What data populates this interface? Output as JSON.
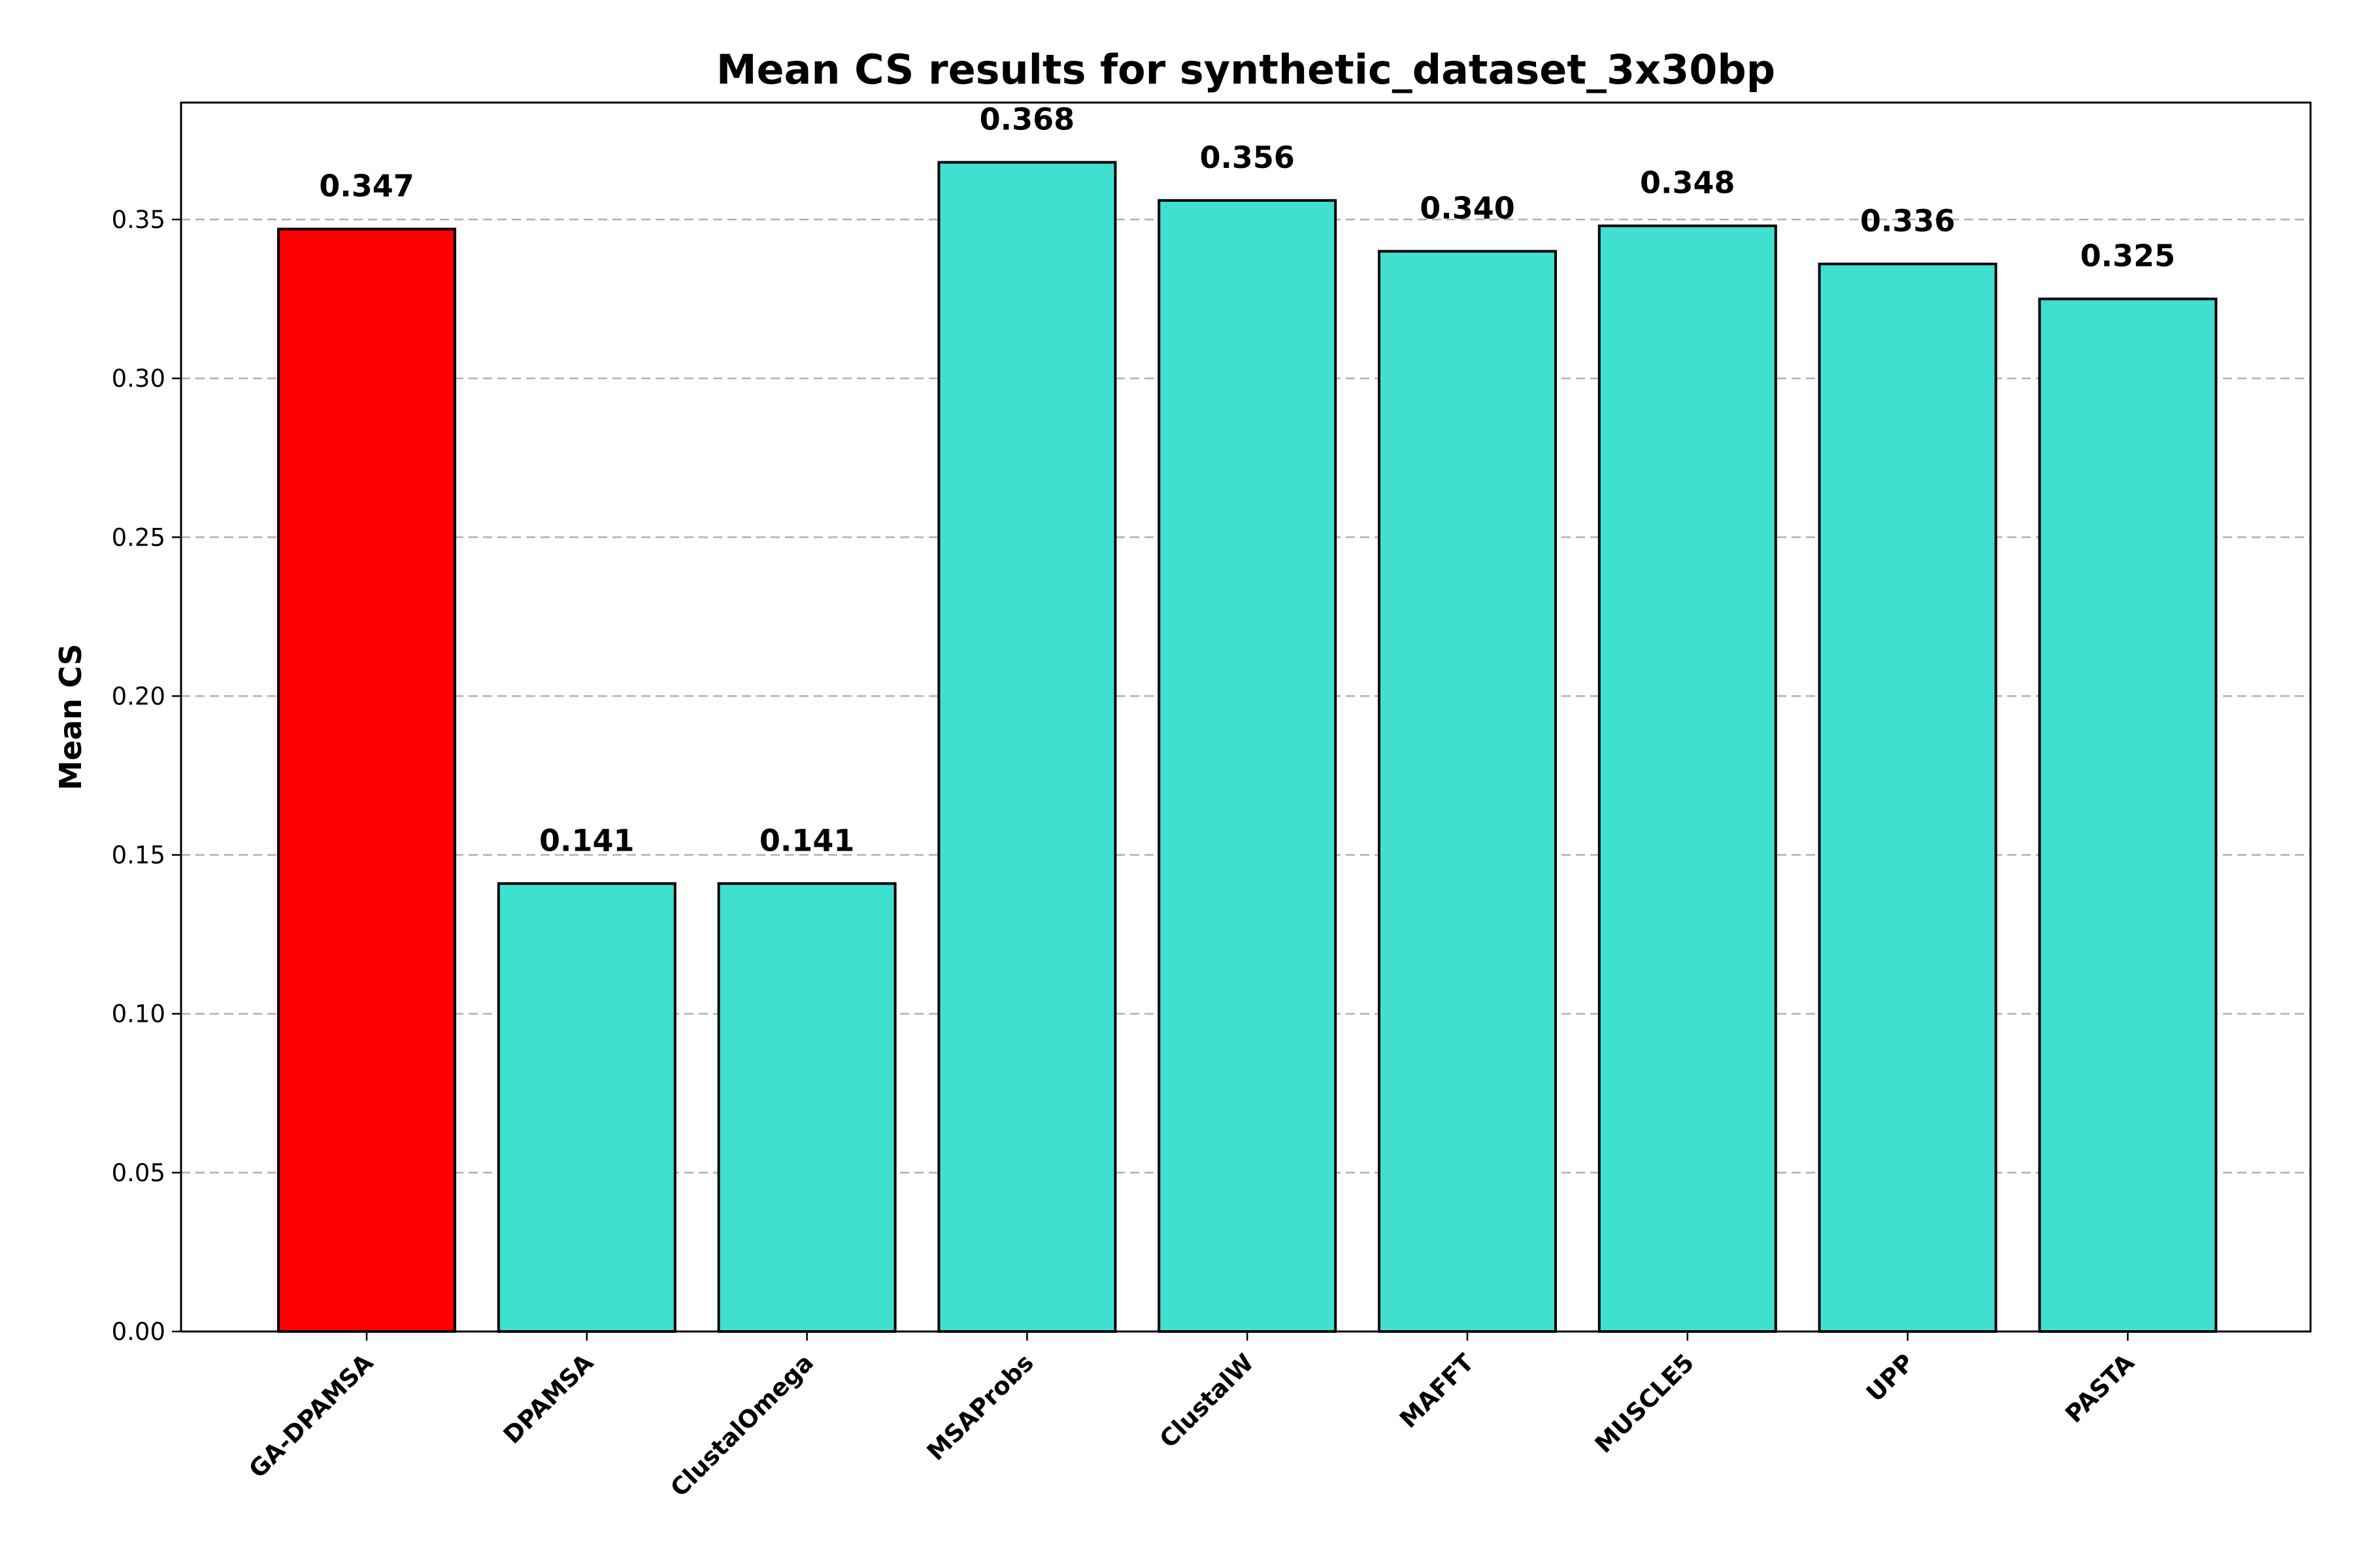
{
  "chart_data": {
    "type": "bar",
    "title": "Mean CS results for synthetic_dataset_3x30bp",
    "xlabel": "",
    "ylabel": "Mean CS",
    "categories": [
      "GA-DPAMSA",
      "DPAMSA",
      "ClustalOmega",
      "MSAProbs",
      "ClustalW",
      "MAFFT",
      "MUSCLE5",
      "UPP",
      "PASTA"
    ],
    "values": [
      0.347,
      0.141,
      0.141,
      0.368,
      0.356,
      0.34,
      0.348,
      0.336,
      0.325
    ],
    "data_labels": [
      "0.347",
      "0.141",
      "0.141",
      "0.368",
      "0.356",
      "0.340",
      "0.348",
      "0.336",
      "0.325"
    ],
    "bar_colors": [
      "#ff0000",
      "#40e0d0",
      "#40e0d0",
      "#40e0d0",
      "#40e0d0",
      "#40e0d0",
      "#40e0d0",
      "#40e0d0",
      "#40e0d0"
    ],
    "edge_color": "#000000",
    "ylim": [
      0,
      0.3868
    ],
    "yticks": [
      0.0,
      0.05,
      0.1,
      0.15,
      0.2,
      0.25,
      0.3,
      0.35
    ],
    "ytick_labels": [
      "0.00",
      "0.05",
      "0.10",
      "0.15",
      "0.20",
      "0.25",
      "0.30",
      "0.35"
    ],
    "grid": "y-dashed",
    "legend": "none"
  }
}
